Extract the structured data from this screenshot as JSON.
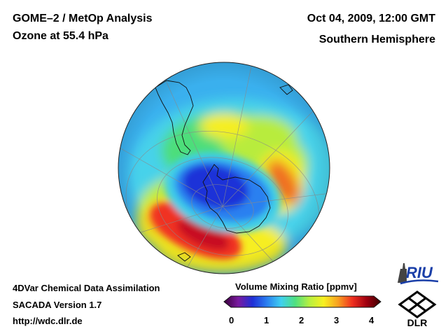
{
  "header": {
    "title": "GOME–2 / MetOp Analysis",
    "subtitle": "Ozone at 55.4 hPa",
    "datetime": "Oct 04, 2009, 12:00 GMT",
    "region": "Southern Hemisphere"
  },
  "footer": {
    "line1": "4DVar Chemical Data Assimilation",
    "line2": "SACADA Version 1.7",
    "line3": "http://wdc.dlr.de"
  },
  "colorbar": {
    "title": "Volume Mixing Ratio [ppmv]",
    "ticks": [
      "0",
      "1",
      "2",
      "3",
      "4"
    ],
    "colors": [
      "#3a003a",
      "#7a1aa0",
      "#1f2fd6",
      "#2a7ef0",
      "#3fd0f0",
      "#4fe080",
      "#b8f040",
      "#f8f020",
      "#f8a020",
      "#f03020",
      "#a00010",
      "#3a0000"
    ]
  },
  "logos": {
    "riu": "RIU",
    "dlr": "DLR"
  },
  "map": {
    "projection": "orthographic, south polar",
    "field": "ozone volume mixing ratio",
    "ozone_hole_min_ppmv": 1.0,
    "collar_max_ppmv": 3.8
  }
}
